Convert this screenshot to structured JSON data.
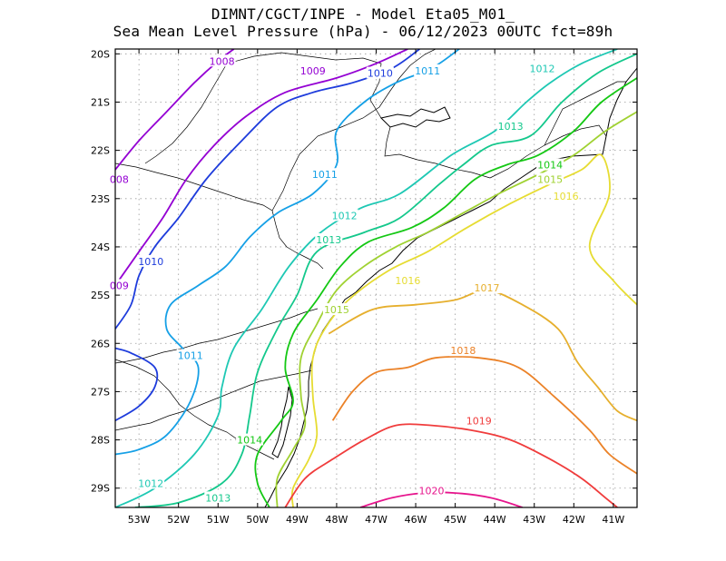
{
  "chart_data": {
    "type": "contour",
    "title": "DIMNT/CGCT/INPE -  Model Eta05_M01_",
    "subtitle": "Sea Mean Level Pressure (hPa) - 06/12/2023 00UTC fct=89h",
    "x_ticks": [
      "53W",
      "52W",
      "51W",
      "50W",
      "49W",
      "48W",
      "47W",
      "46W",
      "45W",
      "44W",
      "43W",
      "42W",
      "41W"
    ],
    "y_ticks": [
      "20S",
      "21S",
      "22S",
      "23S",
      "24S",
      "25S",
      "26S",
      "27S",
      "28S",
      "29S"
    ],
    "xlim": [
      -53.6,
      -40.4
    ],
    "ylim": [
      -29.4,
      -19.9
    ],
    "grid": true,
    "contours": [
      {
        "level": "1008",
        "color": "#9400d3",
        "points": [
          [
            -53.6,
            -22.4
          ],
          [
            -53.0,
            -21.8
          ],
          [
            -52.3,
            -21.2
          ],
          [
            -51.6,
            -20.6
          ],
          [
            -51.0,
            -20.15
          ],
          [
            -50.6,
            -19.9
          ]
        ],
        "labels": [
          {
            "text": "1008",
            "lon": -50.9,
            "lat": -20.15
          },
          {
            "text": "008",
            "lon": -53.5,
            "lat": -22.6
          }
        ]
      },
      {
        "level": "1009",
        "color": "#9400d3",
        "points": [
          [
            -53.6,
            -24.8
          ],
          [
            -53.0,
            -24.1
          ],
          [
            -52.4,
            -23.4
          ],
          [
            -51.8,
            -22.6
          ],
          [
            -51.1,
            -21.9
          ],
          [
            -50.3,
            -21.3
          ],
          [
            -49.3,
            -20.8
          ],
          [
            -48.0,
            -20.5
          ],
          [
            -47.0,
            -20.2
          ],
          [
            -46.2,
            -19.9
          ]
        ],
        "labels": [
          {
            "text": "1009",
            "lon": -48.6,
            "lat": -20.35
          },
          {
            "text": "009",
            "lon": -53.5,
            "lat": -24.8
          }
        ]
      },
      {
        "level": "1010",
        "color": "#1e3cdc",
        "points": [
          [
            -53.6,
            -25.7
          ],
          [
            -53.2,
            -25.2
          ],
          [
            -53.0,
            -24.6
          ],
          [
            -52.6,
            -24.0
          ],
          [
            -52.0,
            -23.4
          ],
          [
            -51.3,
            -22.6
          ],
          [
            -50.4,
            -21.8
          ],
          [
            -49.5,
            -21.1
          ],
          [
            -48.6,
            -20.8
          ],
          [
            -47.6,
            -20.6
          ],
          [
            -46.6,
            -20.3
          ],
          [
            -45.9,
            -19.9
          ]
        ],
        "labels": [
          {
            "text": "1010",
            "lon": -46.9,
            "lat": -20.4
          },
          {
            "text": "1010",
            "lon": -52.7,
            "lat": -24.3
          }
        ]
      },
      {
        "level": "1010",
        "color": "#1e3cdc",
        "points": [
          [
            -53.6,
            -27.6
          ],
          [
            -53.0,
            -27.3
          ],
          [
            -52.6,
            -26.9
          ],
          [
            -52.6,
            -26.5
          ],
          [
            -53.2,
            -26.2
          ],
          [
            -53.6,
            -26.1
          ]
        ],
        "labels": []
      },
      {
        "level": "1011",
        "color": "#16a0e6",
        "points": [
          [
            -53.6,
            -28.3
          ],
          [
            -53.0,
            -28.2
          ],
          [
            -52.3,
            -27.9
          ],
          [
            -51.7,
            -27.2
          ],
          [
            -51.5,
            -26.5
          ],
          [
            -51.9,
            -26.1
          ],
          [
            -52.3,
            -25.7
          ],
          [
            -52.2,
            -25.2
          ],
          [
            -51.5,
            -24.8
          ],
          [
            -50.8,
            -24.4
          ],
          [
            -50.2,
            -23.8
          ],
          [
            -49.5,
            -23.3
          ],
          [
            -48.6,
            -22.9
          ],
          [
            -48.0,
            -22.3
          ],
          [
            -48.0,
            -21.6
          ],
          [
            -47.3,
            -21.0
          ],
          [
            -46.5,
            -20.6
          ],
          [
            -45.6,
            -20.3
          ],
          [
            -44.9,
            -19.9
          ]
        ],
        "labels": [
          {
            "text": "1011",
            "lon": -45.7,
            "lat": -20.35
          },
          {
            "text": "1011",
            "lon": -48.3,
            "lat": -22.5
          },
          {
            "text": "1011",
            "lon": -51.7,
            "lat": -26.25
          }
        ]
      },
      {
        "level": "1012",
        "color": "#1ec8b4",
        "points": [
          [
            -53.6,
            -29.4
          ],
          [
            -52.6,
            -29.0
          ],
          [
            -51.6,
            -28.3
          ],
          [
            -51.0,
            -27.5
          ],
          [
            -50.9,
            -26.9
          ],
          [
            -50.6,
            -26.1
          ],
          [
            -49.9,
            -25.3
          ],
          [
            -49.2,
            -24.4
          ],
          [
            -48.4,
            -23.7
          ],
          [
            -47.4,
            -23.2
          ],
          [
            -46.4,
            -22.9
          ],
          [
            -45.1,
            -22.1
          ],
          [
            -44.0,
            -21.6
          ],
          [
            -43.2,
            -21.0
          ],
          [
            -42.6,
            -20.6
          ],
          [
            -41.8,
            -20.2
          ],
          [
            -40.9,
            -19.9
          ]
        ],
        "labels": [
          {
            "text": "1012",
            "lon": -42.8,
            "lat": -20.3
          },
          {
            "text": "1012",
            "lon": -47.8,
            "lat": -23.35
          },
          {
            "text": "1012",
            "lon": -52.7,
            "lat": -28.9
          }
        ]
      },
      {
        "level": "1013",
        "color": "#14c88c",
        "points": [
          [
            -53.1,
            -29.4
          ],
          [
            -52.0,
            -29.3
          ],
          [
            -50.9,
            -28.9
          ],
          [
            -50.4,
            -28.3
          ],
          [
            -50.2,
            -27.5
          ],
          [
            -50.0,
            -26.6
          ],
          [
            -49.5,
            -25.7
          ],
          [
            -49.0,
            -25.0
          ],
          [
            -48.5,
            -24.1
          ],
          [
            -47.3,
            -23.7
          ],
          [
            -46.4,
            -23.4
          ],
          [
            -45.4,
            -22.7
          ],
          [
            -44.8,
            -22.3
          ],
          [
            -44.1,
            -21.9
          ],
          [
            -43.1,
            -21.7
          ],
          [
            -42.3,
            -21.0
          ],
          [
            -41.4,
            -20.4
          ],
          [
            -40.4,
            -20.0
          ]
        ],
        "labels": [
          {
            "text": "1013",
            "lon": -43.6,
            "lat": -21.5
          },
          {
            "text": "1013",
            "lon": -48.2,
            "lat": -23.85
          },
          {
            "text": "1013",
            "lon": -51.0,
            "lat": -29.2
          }
        ]
      },
      {
        "level": "1014",
        "color": "#14c814",
        "points": [
          [
            -49.7,
            -29.4
          ],
          [
            -50.0,
            -28.9
          ],
          [
            -50.0,
            -28.3
          ],
          [
            -49.4,
            -27.6
          ],
          [
            -49.1,
            -27.2
          ],
          [
            -49.3,
            -26.5
          ],
          [
            -49.1,
            -25.8
          ],
          [
            -48.5,
            -25.1
          ],
          [
            -47.9,
            -24.4
          ],
          [
            -47.2,
            -23.9
          ],
          [
            -46.1,
            -23.6
          ],
          [
            -45.3,
            -23.2
          ],
          [
            -44.5,
            -22.6
          ],
          [
            -43.7,
            -22.3
          ],
          [
            -42.9,
            -22.1
          ],
          [
            -42.0,
            -21.6
          ],
          [
            -41.3,
            -21.0
          ],
          [
            -40.4,
            -20.5
          ]
        ],
        "labels": [
          {
            "text": "1014",
            "lon": -42.6,
            "lat": -22.3
          },
          {
            "text": "1014",
            "lon": -50.2,
            "lat": -28.0
          }
        ]
      },
      {
        "level": "1015",
        "color": "#a0d232",
        "points": [
          [
            -49.5,
            -29.4
          ],
          [
            -49.5,
            -28.8
          ],
          [
            -49.1,
            -28.2
          ],
          [
            -48.8,
            -27.7
          ],
          [
            -48.9,
            -27.1
          ],
          [
            -48.9,
            -26.3
          ],
          [
            -48.5,
            -25.6
          ],
          [
            -48.0,
            -24.9
          ],
          [
            -47.3,
            -24.4
          ],
          [
            -46.5,
            -24.0
          ],
          [
            -45.7,
            -23.7
          ],
          [
            -44.8,
            -23.3
          ],
          [
            -43.9,
            -22.9
          ],
          [
            -42.9,
            -22.5
          ],
          [
            -42.0,
            -22.1
          ],
          [
            -41.2,
            -21.6
          ],
          [
            -40.4,
            -21.2
          ]
        ],
        "labels": [
          {
            "text": "1015",
            "lon": -42.6,
            "lat": -22.6
          },
          {
            "text": "1015",
            "lon": -48.0,
            "lat": -25.3
          }
        ]
      },
      {
        "level": "1016",
        "color": "#e6dc32",
        "points": [
          [
            -49.1,
            -29.4
          ],
          [
            -49.1,
            -29.0
          ],
          [
            -48.7,
            -28.4
          ],
          [
            -48.5,
            -27.9
          ],
          [
            -48.6,
            -27.1
          ],
          [
            -48.6,
            -26.3
          ],
          [
            -48.3,
            -25.7
          ],
          [
            -47.7,
            -25.1
          ],
          [
            -46.7,
            -24.5
          ],
          [
            -45.7,
            -24.1
          ],
          [
            -44.7,
            -23.6
          ],
          [
            -43.6,
            -23.1
          ],
          [
            -42.6,
            -22.7
          ],
          [
            -41.8,
            -22.4
          ],
          [
            -41.3,
            -22.1
          ],
          [
            -41.1,
            -22.9
          ],
          [
            -41.6,
            -24.0
          ],
          [
            -41.0,
            -24.7
          ],
          [
            -40.4,
            -25.2
          ]
        ],
        "labels": [
          {
            "text": "1016",
            "lon": -42.2,
            "lat": -22.95
          },
          {
            "text": "1016",
            "lon": -46.2,
            "lat": -24.7
          }
        ]
      },
      {
        "level": "1017",
        "color": "#e6af2d",
        "points": [
          [
            -48.2,
            -25.8
          ],
          [
            -47.1,
            -25.3
          ],
          [
            -46.0,
            -25.2
          ],
          [
            -45.0,
            -25.1
          ],
          [
            -44.2,
            -24.9
          ],
          [
            -43.3,
            -25.2
          ],
          [
            -42.4,
            -25.7
          ],
          [
            -41.9,
            -26.4
          ],
          [
            -41.4,
            -26.9
          ],
          [
            -40.9,
            -27.4
          ],
          [
            -40.4,
            -27.6
          ]
        ],
        "labels": [
          {
            "text": "1017",
            "lon": -44.2,
            "lat": -24.85
          }
        ]
      },
      {
        "level": "1018",
        "color": "#eb8228",
        "points": [
          [
            -48.1,
            -27.6
          ],
          [
            -47.6,
            -27.0
          ],
          [
            -47.0,
            -26.6
          ],
          [
            -46.2,
            -26.5
          ],
          [
            -45.5,
            -26.3
          ],
          [
            -44.4,
            -26.3
          ],
          [
            -43.4,
            -26.5
          ],
          [
            -42.5,
            -27.1
          ],
          [
            -41.6,
            -27.8
          ],
          [
            -41.1,
            -28.3
          ],
          [
            -40.4,
            -28.7
          ]
        ],
        "labels": [
          {
            "text": "1018",
            "lon": -44.8,
            "lat": -26.15
          }
        ]
      },
      {
        "level": "1019",
        "color": "#f03c3c",
        "points": [
          [
            -49.3,
            -29.4
          ],
          [
            -48.8,
            -28.8
          ],
          [
            -48.1,
            -28.4
          ],
          [
            -47.3,
            -28.0
          ],
          [
            -46.5,
            -27.7
          ],
          [
            -45.6,
            -27.7
          ],
          [
            -44.6,
            -27.8
          ],
          [
            -43.6,
            -28.0
          ],
          [
            -42.6,
            -28.4
          ],
          [
            -41.8,
            -28.8
          ],
          [
            -41.2,
            -29.2
          ],
          [
            -40.9,
            -29.4
          ]
        ],
        "labels": [
          {
            "text": "1019",
            "lon": -44.4,
            "lat": -27.6
          }
        ]
      },
      {
        "level": "1020",
        "color": "#e6148c",
        "points": [
          [
            -47.4,
            -29.4
          ],
          [
            -46.6,
            -29.2
          ],
          [
            -45.8,
            -29.1
          ],
          [
            -45.0,
            -29.1
          ],
          [
            -44.1,
            -29.2
          ],
          [
            -43.3,
            -29.4
          ]
        ],
        "labels": [
          {
            "text": "1020",
            "lon": -45.6,
            "lat": -29.05
          }
        ]
      }
    ]
  }
}
